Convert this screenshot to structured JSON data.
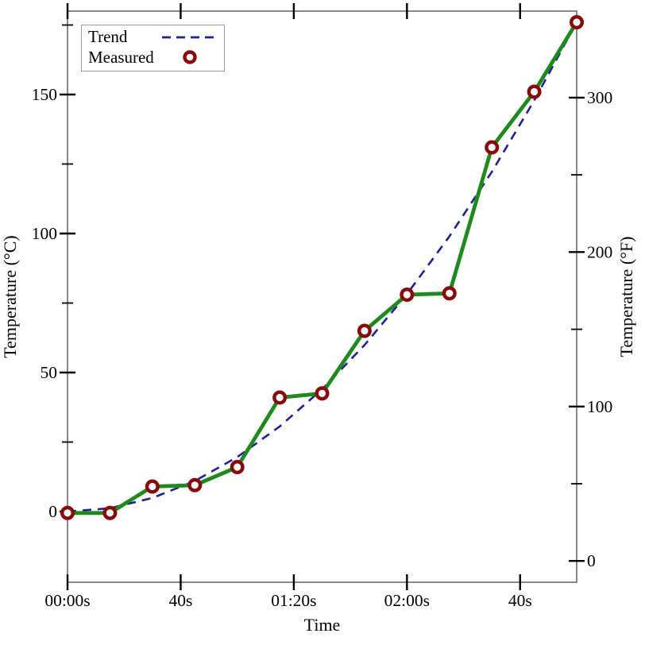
{
  "figure": {
    "background": "#ffffff",
    "frame_color": "#888888",
    "tick_color": "#000000",
    "text_color": "#000000"
  },
  "chart_data": {
    "type": "line",
    "title": "",
    "xlabel": "Time",
    "ylabel_left": "Temperature (°C)",
    "ylabel_right": "Temperature (°F)",
    "x_unit": "seconds",
    "x_range_seconds": [
      0,
      180
    ],
    "y_left_range_celsius": [
      -25,
      180
    ],
    "grid": false,
    "legend_position": "top-left",
    "x_ticks": [
      {
        "value": 0,
        "label": "00:00s"
      },
      {
        "value": 40,
        "label": "40s"
      },
      {
        "value": 80,
        "label": "01:20s"
      },
      {
        "value": 120,
        "label": "02:00s"
      },
      {
        "value": 160,
        "label": "40s"
      }
    ],
    "y_left_ticks": [
      {
        "value": 0,
        "label": "0"
      },
      {
        "value": 50,
        "label": "50"
      },
      {
        "value": 100,
        "label": "100"
      },
      {
        "value": 150,
        "label": "150"
      }
    ],
    "y_left_minor_ticks": [
      25,
      75,
      125,
      175
    ],
    "y_right_ticks": [
      {
        "value": 0,
        "label": "0"
      },
      {
        "value": 100,
        "label": "100"
      },
      {
        "value": 200,
        "label": "200"
      },
      {
        "value": 300,
        "label": "300"
      }
    ],
    "y_right_minor_ticks": [
      50,
      150,
      250,
      350
    ],
    "series": [
      {
        "name": "Trend",
        "style": "dashed-line",
        "color": "#1f1f9e",
        "x_seconds": [
          0,
          15,
          30,
          45,
          60,
          75,
          90,
          105,
          120,
          135,
          150,
          165,
          180
        ],
        "y_celsius": [
          0,
          1.2,
          4.9,
          11.0,
          19.6,
          30.6,
          44.0,
          59.9,
          78.2,
          99.0,
          122.2,
          147.9,
          176.0
        ]
      },
      {
        "name": "Measured",
        "style": "line-with-open-circle-markers",
        "line_color": "#1e8a1e",
        "marker_color": "#8a0a0a",
        "x_seconds": [
          0,
          15,
          30,
          45,
          60,
          75,
          90,
          105,
          120,
          135,
          150,
          165,
          180
        ],
        "y_celsius": [
          -0.5,
          -0.5,
          9.0,
          9.5,
          16.0,
          41.0,
          42.5,
          65.0,
          78.0,
          78.5,
          131.0,
          151.0,
          176.0
        ]
      }
    ]
  }
}
